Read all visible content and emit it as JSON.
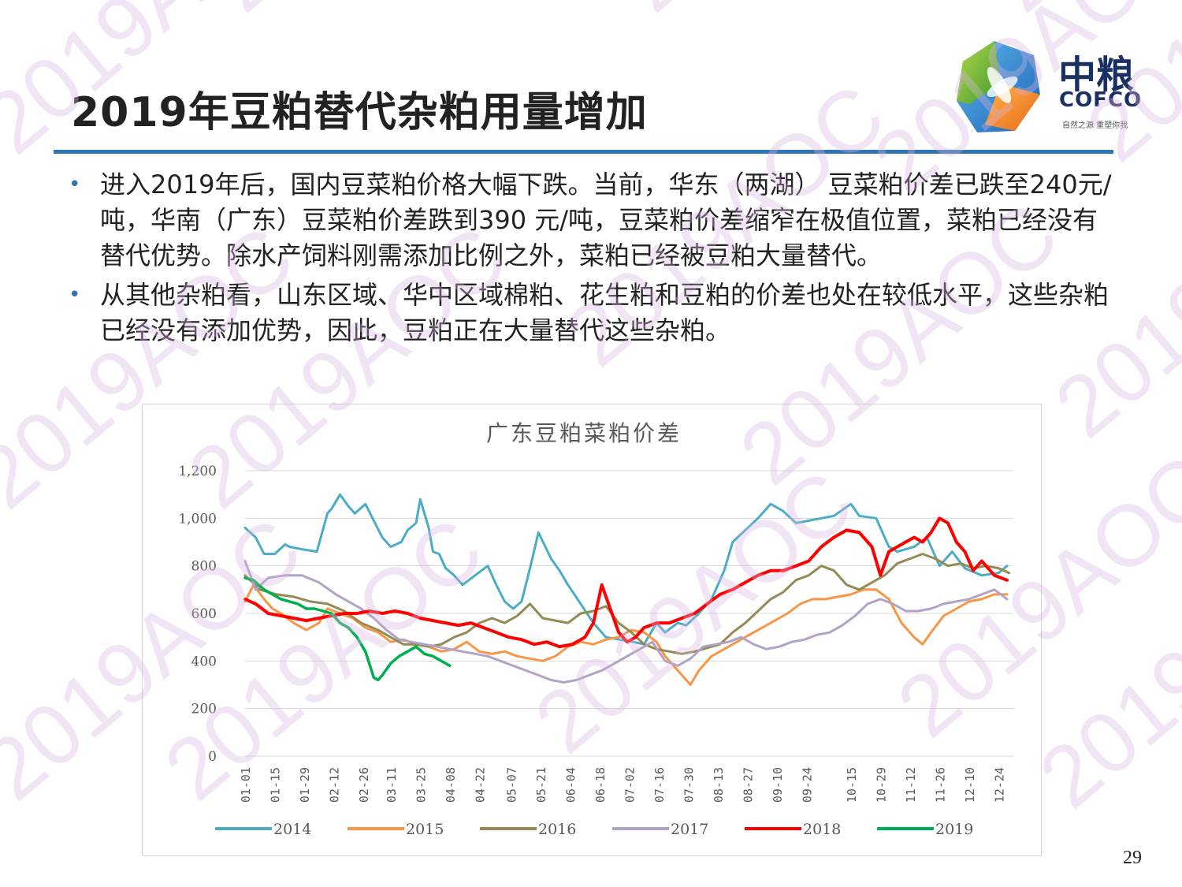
{
  "slide": {
    "title": "2019年豆粕替代杂粕用量增加",
    "page_number": "29",
    "bullets": [
      "进入2019年后，国内豆菜粕价格大幅下跌。当前，华东（两湖） 豆菜粕价差已跌至240元/吨，华南（广东）豆菜粕价差跌到390 元/吨，豆菜粕价差缩窄在极值位置，菜粕已经没有替代优势。除水产饲料刚需添加比例之外，菜粕已经被豆粕大量替代。",
      "从其他杂粕看，山东区域、华中区域棉粕、花生粕和豆粕的价差也处在较低水平，这些杂粕已经没有添加优势，因此，豆粕正在大量替代这些杂粕。"
    ],
    "watermark_text": "2019AOC"
  },
  "logo": {
    "name_cn": "中粮",
    "name_en": "COFCO",
    "tagline": "自然之源 重塑你我"
  },
  "colors": {
    "accent_blue": "#2e75b6",
    "series_2014": "#4bacc6",
    "series_2015": "#f79646",
    "series_2016": "#948a54",
    "series_2017": "#b3a2c7",
    "series_2018": "#ff0000",
    "series_2019": "#00b050"
  },
  "chart_data": {
    "type": "line",
    "title": "广东豆粕菜粕价差",
    "xlabel": "",
    "ylabel": "",
    "ylim": [
      0,
      1200
    ],
    "y_ticks": [
      "0",
      "200",
      "400",
      "600",
      "800",
      "1,000",
      "1,200"
    ],
    "x_range": [
      1,
      365
    ],
    "x_ticks": [
      {
        "label": "01-01",
        "day": 1
      },
      {
        "label": "01-15",
        "day": 15
      },
      {
        "label": "01-29",
        "day": 29
      },
      {
        "label": "02-12",
        "day": 43
      },
      {
        "label": "02-26",
        "day": 57
      },
      {
        "label": "03-11",
        "day": 70
      },
      {
        "label": "03-25",
        "day": 84
      },
      {
        "label": "04-08",
        "day": 98
      },
      {
        "label": "04-22",
        "day": 112
      },
      {
        "label": "05-07",
        "day": 127
      },
      {
        "label": "05-21",
        "day": 141
      },
      {
        "label": "06-04",
        "day": 155
      },
      {
        "label": "06-18",
        "day": 169
      },
      {
        "label": "07-02",
        "day": 183
      },
      {
        "label": "07-16",
        "day": 197
      },
      {
        "label": "07-30",
        "day": 211
      },
      {
        "label": "08-13",
        "day": 225
      },
      {
        "label": "08-27",
        "day": 239
      },
      {
        "label": "09-10",
        "day": 253
      },
      {
        "label": "09-24",
        "day": 267
      },
      {
        "label": "10-15",
        "day": 288
      },
      {
        "label": "10-29",
        "day": 302
      },
      {
        "label": "11-12",
        "day": 316
      },
      {
        "label": "11-26",
        "day": 330
      },
      {
        "label": "12-10",
        "day": 344
      },
      {
        "label": "12-24",
        "day": 358
      }
    ],
    "grid": "horizontal",
    "legend_position": "bottom",
    "series": [
      {
        "name": "2014",
        "x": [
          1,
          6,
          10,
          15,
          20,
          22,
          28,
          35,
          40,
          42,
          46,
          50,
          53,
          58,
          62,
          66,
          70,
          75,
          78,
          82,
          84,
          88,
          90,
          93,
          96,
          100,
          104,
          110,
          116,
          120,
          124,
          128,
          132,
          136,
          140,
          146,
          150,
          154,
          160,
          166,
          172,
          185,
          190,
          196,
          200,
          206,
          210,
          216,
          222,
          228,
          232,
          238,
          244,
          250,
          256,
          262,
          268,
          274,
          280,
          288,
          292,
          300,
          306,
          310,
          318,
          324,
          330,
          336,
          342,
          350,
          358,
          362
        ],
        "values": [
          960,
          920,
          850,
          850,
          890,
          880,
          870,
          860,
          1020,
          1040,
          1100,
          1050,
          1020,
          1060,
          990,
          920,
          880,
          900,
          950,
          980,
          1080,
          960,
          860,
          850,
          790,
          760,
          720,
          760,
          800,
          720,
          650,
          620,
          650,
          790,
          940,
          830,
          780,
          720,
          640,
          560,
          500,
          480,
          470,
          560,
          520,
          560,
          550,
          600,
          660,
          780,
          900,
          950,
          1000,
          1060,
          1030,
          980,
          990,
          1000,
          1010,
          1060,
          1010,
          1000,
          880,
          860,
          880,
          920,
          800,
          860,
          790,
          760,
          770,
          800
        ]
      },
      {
        "name": "2015",
        "x": [
          1,
          5,
          10,
          14,
          18,
          24,
          30,
          36,
          40,
          46,
          52,
          58,
          64,
          70,
          76,
          82,
          88,
          94,
          100,
          106,
          112,
          118,
          124,
          130,
          136,
          142,
          148,
          154,
          160,
          166,
          172,
          178,
          184,
          190,
          196,
          200,
          204,
          208,
          212,
          216,
          222,
          228,
          234,
          240,
          246,
          252,
          258,
          264,
          270,
          276,
          282,
          288,
          294,
          300,
          306,
          312,
          318,
          322,
          326,
          332,
          338,
          344,
          350,
          356,
          362
        ],
        "values": [
          650,
          720,
          660,
          620,
          600,
          560,
          530,
          560,
          620,
          600,
          580,
          540,
          520,
          480,
          490,
          470,
          460,
          440,
          450,
          480,
          440,
          430,
          440,
          420,
          410,
          400,
          420,
          460,
          480,
          470,
          490,
          500,
          530,
          520,
          480,
          420,
          380,
          340,
          300,
          360,
          420,
          450,
          480,
          510,
          540,
          570,
          600,
          640,
          660,
          660,
          670,
          680,
          700,
          700,
          660,
          560,
          500,
          470,
          520,
          590,
          620,
          650,
          660,
          680,
          680
        ]
      },
      {
        "name": "2016",
        "x": [
          1,
          8,
          16,
          24,
          32,
          40,
          48,
          56,
          64,
          70,
          76,
          82,
          88,
          94,
          100,
          106,
          112,
          118,
          124,
          130,
          136,
          142,
          148,
          154,
          160,
          166,
          172,
          178,
          184,
          190,
          196,
          202,
          208,
          214,
          218,
          222,
          226,
          232,
          238,
          244,
          250,
          256,
          262,
          268,
          274,
          280,
          286,
          292,
          298,
          304,
          310,
          316,
          322,
          328,
          334,
          340,
          346,
          352,
          358,
          363
        ],
        "values": [
          760,
          700,
          680,
          670,
          650,
          640,
          610,
          560,
          530,
          500,
          470,
          470,
          460,
          470,
          500,
          520,
          560,
          580,
          560,
          590,
          640,
          580,
          570,
          560,
          600,
          610,
          630,
          560,
          520,
          470,
          450,
          440,
          430,
          440,
          450,
          460,
          470,
          520,
          560,
          610,
          660,
          690,
          740,
          760,
          800,
          780,
          720,
          700,
          730,
          760,
          810,
          830,
          850,
          830,
          800,
          810,
          790,
          800,
          790,
          770
        ]
      },
      {
        "name": "2017",
        "x": [
          1,
          6,
          12,
          20,
          28,
          36,
          44,
          50,
          56,
          62,
          68,
          74,
          80,
          86,
          92,
          98,
          104,
          110,
          116,
          122,
          128,
          134,
          140,
          146,
          152,
          158,
          164,
          170,
          176,
          182,
          188,
          194,
          200,
          206,
          212,
          218,
          224,
          230,
          236,
          242,
          248,
          254,
          260,
          266,
          272,
          278,
          284,
          290,
          296,
          302,
          308,
          314,
          320,
          326,
          332,
          338,
          344,
          350,
          356,
          362
        ],
        "values": [
          820,
          700,
          750,
          760,
          760,
          730,
          680,
          650,
          620,
          580,
          530,
          490,
          480,
          470,
          460,
          450,
          440,
          430,
          420,
          400,
          380,
          360,
          340,
          320,
          310,
          320,
          340,
          360,
          390,
          420,
          450,
          480,
          400,
          380,
          410,
          460,
          470,
          480,
          500,
          470,
          450,
          460,
          480,
          490,
          510,
          520,
          550,
          590,
          640,
          660,
          640,
          610,
          610,
          620,
          640,
          650,
          660,
          680,
          700,
          660
        ]
      },
      {
        "name": "2018",
        "x": [
          1,
          6,
          12,
          18,
          24,
          30,
          36,
          42,
          48,
          54,
          60,
          66,
          72,
          78,
          84,
          90,
          96,
          102,
          108,
          114,
          120,
          126,
          132,
          138,
          144,
          150,
          156,
          162,
          166,
          170,
          174,
          178,
          182,
          186,
          190,
          196,
          202,
          208,
          214,
          220,
          226,
          232,
          238,
          244,
          250,
          256,
          262,
          268,
          274,
          280,
          286,
          292,
          298,
          302,
          306,
          312,
          318,
          322,
          326,
          330,
          334,
          338,
          342,
          346,
          350,
          356,
          362
        ],
        "values": [
          660,
          640,
          600,
          590,
          580,
          570,
          580,
          590,
          600,
          600,
          610,
          600,
          610,
          600,
          580,
          570,
          560,
          550,
          560,
          540,
          520,
          500,
          490,
          470,
          480,
          460,
          470,
          500,
          560,
          720,
          620,
          520,
          480,
          500,
          540,
          560,
          560,
          580,
          600,
          640,
          680,
          700,
          730,
          760,
          780,
          780,
          800,
          820,
          880,
          920,
          950,
          940,
          880,
          760,
          860,
          890,
          920,
          900,
          940,
          1000,
          980,
          900,
          860,
          780,
          820,
          760,
          740
        ]
      },
      {
        "name": "2019",
        "x": [
          1,
          5,
          10,
          14,
          18,
          22,
          26,
          30,
          34,
          38,
          42,
          46,
          50,
          54,
          58,
          62,
          64,
          66,
          70,
          74,
          78,
          82,
          86,
          90,
          94,
          98
        ],
        "values": [
          750,
          740,
          700,
          680,
          660,
          650,
          640,
          620,
          620,
          610,
          600,
          560,
          540,
          500,
          440,
          330,
          320,
          340,
          390,
          420,
          440,
          460,
          430,
          420,
          400,
          380
        ]
      }
    ]
  }
}
